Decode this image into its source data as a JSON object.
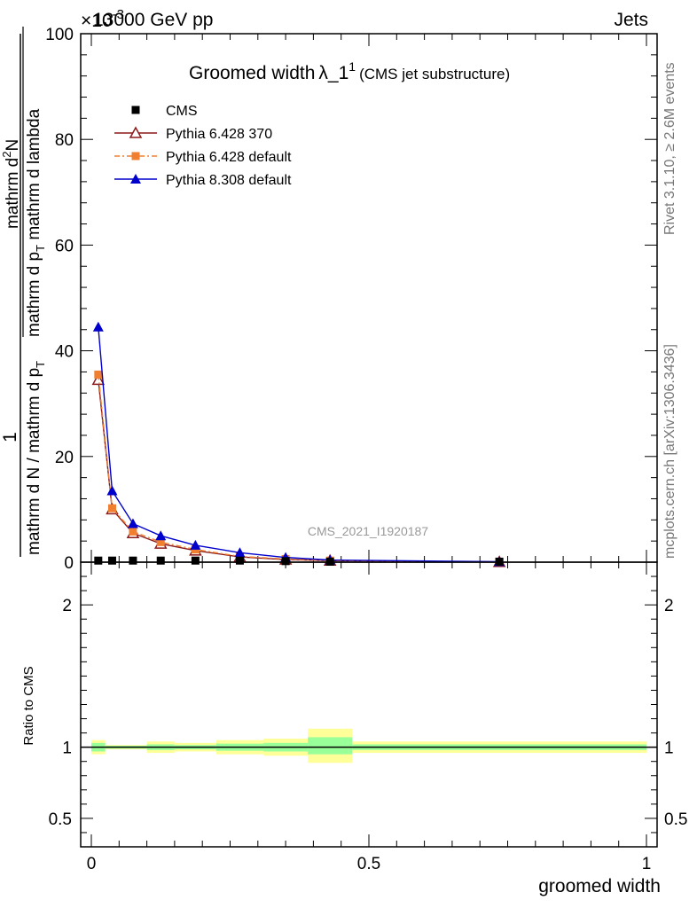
{
  "header": {
    "energy": "13000 GeV pp",
    "category": "Jets",
    "exponent": "×10",
    "exponent_power": "-3"
  },
  "title": {
    "main": "Groomed width",
    "lambda": "λ_1",
    "sup": "1",
    "sub": "(CMS jet substructure)"
  },
  "side_labels": {
    "rivet": "Rivet 3.1.10, ≥ 2.6M events",
    "mcplots": "mcplots.cern.ch [arXiv:1306.3436]"
  },
  "watermark": "CMS_2021_I1920187",
  "y_axis_label": {
    "numerator": "1",
    "denominator": "mathrm d N / mathrm d p",
    "denominator_sub": "T",
    "frac_top": "mathrm d",
    "frac_top_sup": "2",
    "frac_top_N": "N",
    "frac_bottom": "mathrm d p",
    "frac_bottom_sub": "T",
    "frac_bottom_rest": " mathrm d lambda"
  },
  "ratio_ylabel": "Ratio to CMS",
  "xlabel": "groomed width",
  "legend": [
    {
      "name": "CMS",
      "color": "#000000",
      "marker": "square-filled"
    },
    {
      "name": "Pythia 6.428 370",
      "color": "#8b1a1a",
      "marker": "triangle-open"
    },
    {
      "name": "Pythia 6.428 default",
      "color": "#f08030",
      "marker": "square-filled-dashed"
    },
    {
      "name": "Pythia 8.308 default",
      "color": "#0000cc",
      "marker": "triangle-filled"
    }
  ],
  "chart_data": [
    {
      "type": "line",
      "panel": "main",
      "xlim": [
        0,
        1
      ],
      "ylim": [
        0,
        100
      ],
      "y_scale_factor": "×10^-3",
      "y_ticks": [
        0,
        20,
        40,
        60,
        80,
        100
      ],
      "x": [
        0.0125,
        0.0375,
        0.075,
        0.125,
        0.1875,
        0.2675,
        0.35,
        0.43,
        0.735
      ],
      "series": [
        {
          "name": "CMS",
          "values": [
            0.3,
            0.3,
            0.3,
            0.3,
            0.3,
            0.3,
            0.2,
            0.1,
            0.1
          ]
        },
        {
          "name": "Pythia 6.428 370",
          "values": [
            34.5,
            10.0,
            5.5,
            3.5,
            2.2,
            1.0,
            0.5,
            0.3,
            0.05
          ]
        },
        {
          "name": "Pythia 6.428 default",
          "values": [
            35.5,
            10.2,
            5.8,
            3.8,
            2.4,
            1.1,
            0.6,
            0.3,
            0.05
          ]
        },
        {
          "name": "Pythia 8.308 default",
          "values": [
            44.5,
            13.5,
            7.3,
            5.0,
            3.2,
            1.8,
            0.9,
            0.4,
            0.1
          ]
        }
      ]
    },
    {
      "type": "area",
      "panel": "ratio",
      "xlim": [
        0,
        1
      ],
      "ylim": [
        0.3,
        2.3
      ],
      "y_ticks": [
        0.5,
        1,
        2
      ],
      "x_ticks": [
        0,
        0.5,
        1
      ],
      "reference": 1,
      "bands": [
        {
          "x": [
            0.0,
            0.025
          ],
          "yellow": [
            0.95,
            1.05
          ],
          "green": [
            0.97,
            1.03
          ]
        },
        {
          "x": [
            0.025,
            0.1
          ],
          "yellow": [
            0.985,
            1.015
          ],
          "green": [
            0.99,
            1.01
          ]
        },
        {
          "x": [
            0.1,
            0.15
          ],
          "yellow": [
            0.96,
            1.04
          ],
          "green": [
            0.98,
            1.02
          ]
        },
        {
          "x": [
            0.15,
            0.225
          ],
          "yellow": [
            0.97,
            1.03
          ],
          "green": [
            0.985,
            1.015
          ]
        },
        {
          "x": [
            0.225,
            0.31
          ],
          "yellow": [
            0.95,
            1.05
          ],
          "green": [
            0.975,
            1.025
          ]
        },
        {
          "x": [
            0.31,
            0.39
          ],
          "yellow": [
            0.94,
            1.06
          ],
          "green": [
            0.97,
            1.03
          ]
        },
        {
          "x": [
            0.39,
            0.47
          ],
          "yellow": [
            0.89,
            1.13
          ],
          "green": [
            0.95,
            1.07
          ]
        },
        {
          "x": [
            0.47,
            1.0
          ],
          "yellow": [
            0.96,
            1.04
          ],
          "green": [
            0.98,
            1.02
          ]
        }
      ]
    }
  ]
}
